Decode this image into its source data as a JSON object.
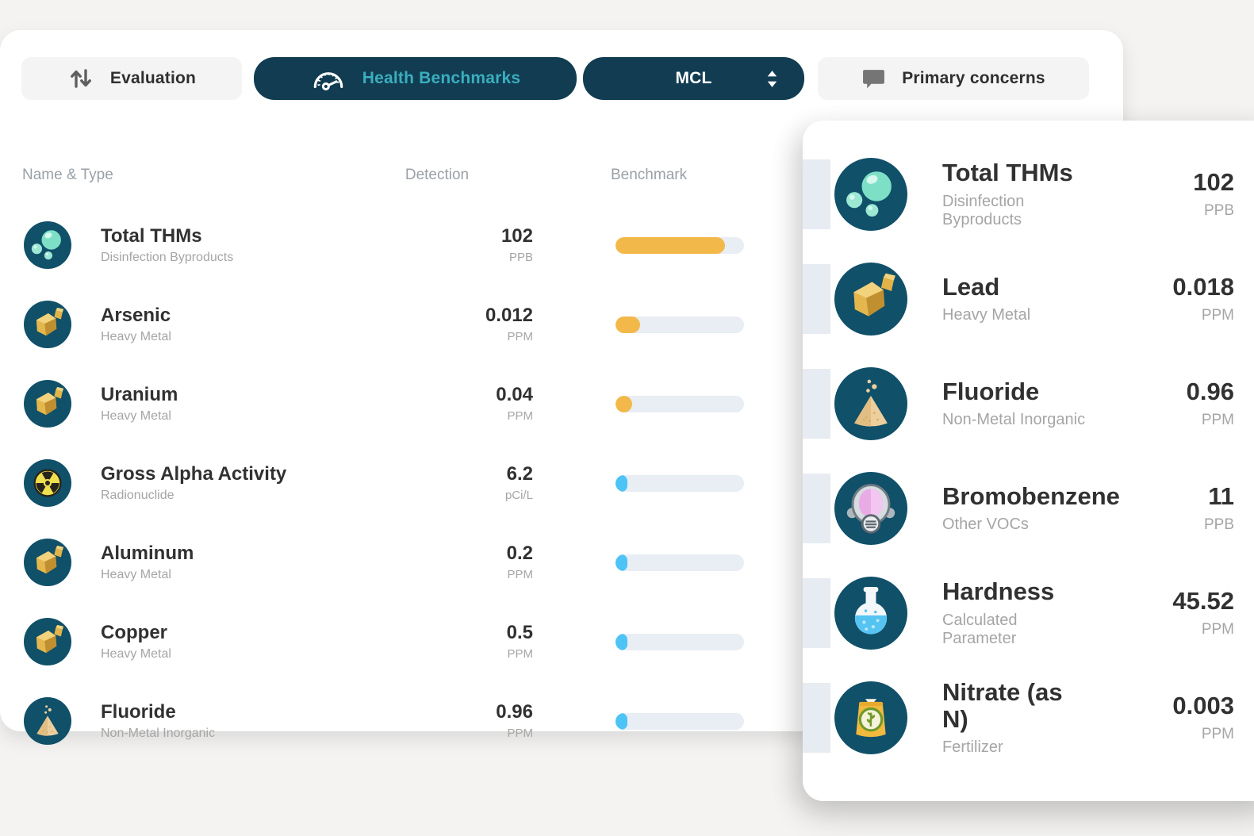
{
  "toolbar": {
    "evaluation_label": "Evaluation",
    "health_benchmarks_label": "Health Benchmarks",
    "mcl_label": "MCL",
    "primary_concerns_label": "Primary concerns"
  },
  "table": {
    "headers": {
      "name_type": "Name & Type",
      "detection": "Detection",
      "benchmark": "Benchmark"
    },
    "rows": [
      {
        "icon": "bubbles",
        "name": "Total THMs",
        "type": "Disinfection Byproducts",
        "value": "102",
        "unit": "PPB",
        "bar": {
          "percent": 85,
          "color": "warning"
        }
      },
      {
        "icon": "gold-nugget",
        "name": "Arsenic",
        "type": "Heavy Metal",
        "value": "0.012",
        "unit": "PPM",
        "bar": {
          "percent": 19,
          "color": "warning"
        }
      },
      {
        "icon": "gold-nugget",
        "name": "Uranium",
        "type": "Heavy Metal",
        "value": "0.04",
        "unit": "PPM",
        "bar": {
          "percent": 13,
          "color": "warning"
        }
      },
      {
        "icon": "radiation",
        "name": "Gross Alpha Activity",
        "type": "Radionuclide",
        "value": "6.2",
        "unit": "pCi/L",
        "bar": {
          "percent": 9,
          "color": "info"
        }
      },
      {
        "icon": "gold-nugget",
        "name": "Aluminum",
        "type": "Heavy Metal",
        "value": "0.2",
        "unit": "PPM",
        "bar": {
          "percent": 9,
          "color": "info"
        }
      },
      {
        "icon": "gold-nugget",
        "name": "Copper",
        "type": "Heavy Metal",
        "value": "0.5",
        "unit": "PPM",
        "bar": {
          "percent": 9,
          "color": "info"
        }
      },
      {
        "icon": "powder-pile",
        "name": "Fluoride",
        "type": "Non-Metal Inorganic",
        "value": "0.96",
        "unit": "PPM",
        "bar": {
          "percent": 9,
          "color": "info"
        }
      }
    ]
  },
  "card": {
    "rows": [
      {
        "icon": "bubbles",
        "name": "Total THMs",
        "type": "Disinfection Byproducts",
        "value": "102",
        "unit": "PPB"
      },
      {
        "icon": "gold-nugget",
        "name": "Lead",
        "type": "Heavy Metal",
        "value": "0.018",
        "unit": "PPM"
      },
      {
        "icon": "powder-pile",
        "name": "Fluoride",
        "type": "Non-Metal Inorganic",
        "value": "0.96",
        "unit": "PPM"
      },
      {
        "icon": "gas-mask",
        "name": "Bromobenzene",
        "type": "Other VOCs",
        "value": "11",
        "unit": "PPB"
      },
      {
        "icon": "flask",
        "name": "Hardness",
        "type": "Calculated Parameter",
        "value": "45.52",
        "unit": "PPM"
      },
      {
        "icon": "fertilizer-bag",
        "name": "Nitrate (as N)",
        "type": "Fertilizer",
        "value": "0.003",
        "unit": "PPM"
      }
    ]
  },
  "colors": {
    "warning": "#F2B94A",
    "info": "#4EC3F5",
    "accent_teal": "#3BAEBD",
    "pill_dark": "#113C52",
    "icon_circle": "#105069",
    "bar_track": "#E9EDF4"
  }
}
